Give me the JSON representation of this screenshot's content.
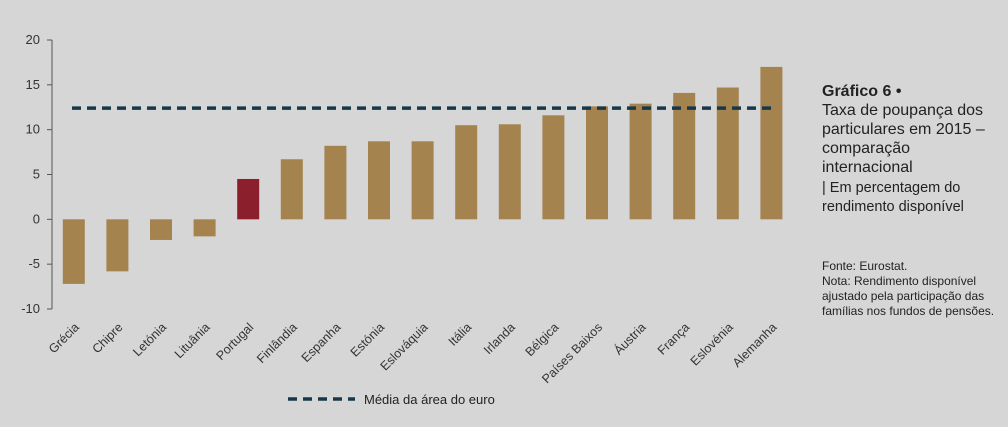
{
  "colors": {
    "background": "#d6d6d6",
    "bar": "#a5834f",
    "highlight": "#8b1f2b",
    "average_line": "#16384a"
  },
  "chart_data": {
    "type": "bar",
    "title": "Gráfico 6",
    "title_bullet": "•",
    "subtitle": "Taxa de poupança dos particulares em 2015 – comparação internacional",
    "unit_note": "| Em percentagem do rendimento disponível",
    "source": "Fonte: Eurostat.",
    "note": "Nota: Rendimento disponível ajustado pela participação das famílias nos fundos de pensões.",
    "categories": [
      "Grécia",
      "Chipre",
      "Letónia",
      "Lituânia",
      "Portugal",
      "Finlândia",
      "Espanha",
      "Estónia",
      "Eslováquia",
      "Itália",
      "Irlanda",
      "Bélgica",
      "Países Baixos",
      "Áustria",
      "França",
      "Eslovénia",
      "Alemanha"
    ],
    "values": [
      -7.2,
      -5.8,
      -2.3,
      -1.9,
      4.5,
      6.7,
      8.2,
      8.7,
      8.7,
      10.5,
      10.6,
      11.6,
      12.6,
      12.9,
      14.1,
      14.7,
      17.0
    ],
    "highlight_category": "Portugal",
    "ylim": [
      -10,
      20
    ],
    "yticks": [
      -10,
      -5,
      0,
      5,
      10,
      15,
      20
    ],
    "reference_line": {
      "name": "Média da área do euro",
      "value": 12.4
    },
    "legend": "bottom",
    "xlabel": "",
    "ylabel": ""
  }
}
